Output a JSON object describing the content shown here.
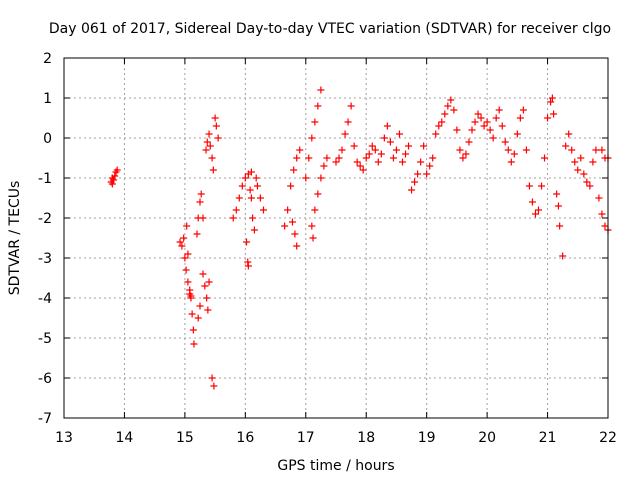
{
  "chart_data": {
    "type": "scatter",
    "title": "Day 061 of 2017, Sidereal Day-to-day VTEC variation (SDTVAR) for receiver clgo",
    "xlabel": "GPS time / hours",
    "ylabel": "SDTVAR / TECUs",
    "xlim": [
      13,
      22
    ],
    "ylim": [
      -7,
      2
    ],
    "xticks": [
      "13",
      "14",
      "15",
      "16",
      "17",
      "18",
      "19",
      "20",
      "21",
      "22"
    ],
    "yticks": [
      "2",
      "1",
      "0",
      "-1",
      "-2",
      "-3",
      "-4",
      "-5",
      "-6",
      "-7"
    ],
    "grid": true,
    "marker": "+",
    "color": "#ff0000",
    "series": [
      {
        "name": "SDTVAR",
        "points": [
          [
            13.78,
            -1.1
          ],
          [
            13.8,
            -1.0
          ],
          [
            13.82,
            -1.05
          ],
          [
            13.84,
            -0.95
          ],
          [
            13.86,
            -0.85
          ],
          [
            13.88,
            -0.8
          ],
          [
            13.8,
            -1.15
          ],
          [
            14.92,
            -2.6
          ],
          [
            14.95,
            -2.7
          ],
          [
            14.98,
            -2.5
          ],
          [
            15.0,
            -3.0
          ],
          [
            15.02,
            -3.3
          ],
          [
            15.05,
            -3.6
          ],
          [
            15.08,
            -3.9
          ],
          [
            15.1,
            -4.0
          ],
          [
            15.12,
            -4.4
          ],
          [
            15.14,
            -4.8
          ],
          [
            15.15,
            -5.15
          ],
          [
            15.05,
            -2.9
          ],
          [
            15.03,
            -2.2
          ],
          [
            15.08,
            -3.8
          ],
          [
            15.1,
            -3.95
          ],
          [
            15.2,
            -2.4
          ],
          [
            15.22,
            -2.0
          ],
          [
            15.25,
            -1.6
          ],
          [
            15.27,
            -1.4
          ],
          [
            15.3,
            -2.0
          ],
          [
            15.3,
            -3.4
          ],
          [
            15.33,
            -3.7
          ],
          [
            15.36,
            -4.0
          ],
          [
            15.38,
            -4.3
          ],
          [
            15.4,
            -3.6
          ],
          [
            15.22,
            -4.5
          ],
          [
            15.25,
            -4.2
          ],
          [
            15.35,
            -0.3
          ],
          [
            15.37,
            -0.1
          ],
          [
            15.4,
            0.1
          ],
          [
            15.42,
            -0.2
          ],
          [
            15.45,
            -0.5
          ],
          [
            15.47,
            -0.8
          ],
          [
            15.5,
            0.5
          ],
          [
            15.52,
            0.3
          ],
          [
            15.55,
            0.0
          ],
          [
            15.45,
            -6.0
          ],
          [
            15.48,
            -6.2
          ],
          [
            15.8,
            -2.0
          ],
          [
            15.85,
            -1.8
          ],
          [
            15.9,
            -1.5
          ],
          [
            15.95,
            -1.2
          ],
          [
            16.0,
            -1.0
          ],
          [
            16.02,
            -2.6
          ],
          [
            16.04,
            -3.1
          ],
          [
            16.05,
            -3.2
          ],
          [
            16.08,
            -1.3
          ],
          [
            16.1,
            -1.5
          ],
          [
            16.12,
            -2.0
          ],
          [
            16.15,
            -2.3
          ],
          [
            16.18,
            -1.0
          ],
          [
            16.2,
            -1.2
          ],
          [
            16.25,
            -1.5
          ],
          [
            16.3,
            -1.8
          ],
          [
            16.05,
            -0.9
          ],
          [
            16.1,
            -0.85
          ],
          [
            16.65,
            -2.2
          ],
          [
            16.7,
            -1.8
          ],
          [
            16.75,
            -1.2
          ],
          [
            16.8,
            -0.8
          ],
          [
            16.85,
            -0.5
          ],
          [
            16.9,
            -0.3
          ],
          [
            16.78,
            -2.1
          ],
          [
            16.82,
            -2.4
          ],
          [
            16.85,
            -2.7
          ],
          [
            17.0,
            -1.0
          ],
          [
            17.05,
            -0.5
          ],
          [
            17.1,
            0.0
          ],
          [
            17.15,
            0.4
          ],
          [
            17.2,
            0.8
          ],
          [
            17.25,
            1.2
          ],
          [
            17.1,
            -2.2
          ],
          [
            17.12,
            -2.5
          ],
          [
            17.15,
            -1.8
          ],
          [
            17.2,
            -1.4
          ],
          [
            17.25,
            -1.0
          ],
          [
            17.3,
            -0.7
          ],
          [
            17.35,
            -0.5
          ],
          [
            17.5,
            -0.6
          ],
          [
            17.55,
            -0.5
          ],
          [
            17.6,
            -0.3
          ],
          [
            17.65,
            0.1
          ],
          [
            17.7,
            0.4
          ],
          [
            17.75,
            0.8
          ],
          [
            17.8,
            -0.2
          ],
          [
            17.85,
            -0.6
          ],
          [
            17.9,
            -0.7
          ],
          [
            17.95,
            -0.8
          ],
          [
            18.0,
            -0.5
          ],
          [
            18.05,
            -0.4
          ],
          [
            18.1,
            -0.2
          ],
          [
            18.15,
            -0.3
          ],
          [
            18.2,
            -0.6
          ],
          [
            18.25,
            -0.4
          ],
          [
            18.3,
            0.0
          ],
          [
            18.35,
            0.3
          ],
          [
            18.4,
            -0.1
          ],
          [
            18.45,
            -0.5
          ],
          [
            18.5,
            -0.3
          ],
          [
            18.55,
            0.1
          ],
          [
            18.6,
            -0.6
          ],
          [
            18.65,
            -0.4
          ],
          [
            18.7,
            -0.2
          ],
          [
            18.75,
            -1.3
          ],
          [
            18.8,
            -1.1
          ],
          [
            18.85,
            -0.9
          ],
          [
            18.9,
            -0.6
          ],
          [
            18.95,
            -0.2
          ],
          [
            19.0,
            -0.9
          ],
          [
            19.05,
            -0.7
          ],
          [
            19.1,
            -0.5
          ],
          [
            19.15,
            0.1
          ],
          [
            19.2,
            0.3
          ],
          [
            19.25,
            0.4
          ],
          [
            19.3,
            0.6
          ],
          [
            19.35,
            0.8
          ],
          [
            19.4,
            0.95
          ],
          [
            19.45,
            0.7
          ],
          [
            19.5,
            0.2
          ],
          [
            19.55,
            -0.3
          ],
          [
            19.6,
            -0.5
          ],
          [
            19.65,
            -0.4
          ],
          [
            19.7,
            -0.1
          ],
          [
            19.75,
            0.2
          ],
          [
            19.8,
            0.4
          ],
          [
            19.85,
            0.6
          ],
          [
            19.9,
            0.5
          ],
          [
            19.95,
            0.3
          ],
          [
            20.0,
            0.4
          ],
          [
            20.05,
            0.2
          ],
          [
            20.1,
            0.0
          ],
          [
            20.15,
            0.5
          ],
          [
            20.2,
            0.7
          ],
          [
            20.25,
            0.3
          ],
          [
            20.3,
            -0.1
          ],
          [
            20.35,
            -0.3
          ],
          [
            20.4,
            -0.6
          ],
          [
            20.45,
            -0.4
          ],
          [
            20.5,
            0.1
          ],
          [
            20.55,
            0.5
          ],
          [
            20.6,
            0.7
          ],
          [
            20.65,
            -0.3
          ],
          [
            20.7,
            -1.2
          ],
          [
            20.75,
            -1.6
          ],
          [
            20.8,
            -1.9
          ],
          [
            20.85,
            -1.8
          ],
          [
            20.9,
            -1.2
          ],
          [
            20.95,
            -0.5
          ],
          [
            21.0,
            0.5
          ],
          [
            21.05,
            0.9
          ],
          [
            21.08,
            1.0
          ],
          [
            21.1,
            0.6
          ],
          [
            21.15,
            -1.4
          ],
          [
            21.18,
            -1.7
          ],
          [
            21.2,
            -2.2
          ],
          [
            21.25,
            -2.95
          ],
          [
            21.3,
            -0.2
          ],
          [
            21.35,
            0.1
          ],
          [
            21.4,
            -0.3
          ],
          [
            21.45,
            -0.6
          ],
          [
            21.5,
            -0.8
          ],
          [
            21.55,
            -0.5
          ],
          [
            21.6,
            -0.9
          ],
          [
            21.65,
            -1.1
          ],
          [
            21.7,
            -1.2
          ],
          [
            21.75,
            -0.6
          ],
          [
            21.8,
            -0.3
          ],
          [
            21.85,
            -1.5
          ],
          [
            21.9,
            -1.9
          ],
          [
            21.95,
            -2.2
          ],
          [
            22.0,
            -2.3
          ],
          [
            21.9,
            -0.3
          ],
          [
            21.95,
            -0.5
          ],
          [
            22.0,
            -0.5
          ]
        ]
      }
    ]
  }
}
